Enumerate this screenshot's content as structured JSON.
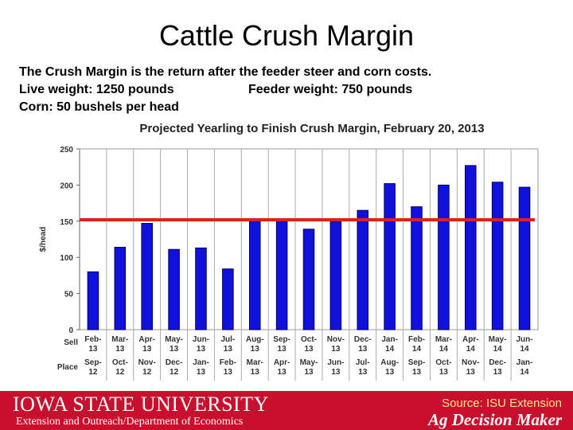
{
  "slide": {
    "title": "Cattle Crush Margin",
    "line1": "The Crush Margin is the return after the feeder steer and corn costs.",
    "line2a": "Live weight:  1250 pounds",
    "line2b": "Feeder weight:  750 pounds",
    "line3": "Corn:  50 bushels per head"
  },
  "footer": {
    "university": "IOWA STATE UNIVERSITY",
    "department": "Extension and Outreach/Department of Economics",
    "source": "Source: ISU Extension",
    "brand": "Ag Decision Maker"
  },
  "colors": {
    "bar": "#1111dd",
    "reference_line": "#e02020",
    "footer": "#c8102e"
  },
  "chart_data": {
    "type": "bar",
    "title": "Projected Yearling to Finish Crush Margin, February 20, 2013",
    "ylabel": "$/head",
    "ylim": [
      0,
      250
    ],
    "yticks": [
      0,
      50,
      100,
      150,
      200,
      250
    ],
    "grid": "vertical",
    "row_labels": [
      "Sell",
      "Place"
    ],
    "sell": [
      "Feb-13",
      "Mar-13",
      "Apr-13",
      "May-13",
      "Jun-13",
      "Jul-13",
      "Aug-13",
      "Sep-13",
      "Oct-13",
      "Nov-13",
      "Dec-13",
      "Jan-14",
      "Feb-14",
      "Mar-14",
      "Apr-14",
      "May-14",
      "Jun-14"
    ],
    "place": [
      "Sep-12",
      "Oct-12",
      "Nov-12",
      "Dec-12",
      "Jan-13",
      "Feb-13",
      "Mar-13",
      "Apr-13",
      "May-13",
      "Jun-13",
      "Jul-13",
      "Aug-13",
      "Sep-13",
      "Oct-13",
      "Nov-13",
      "Dec-13",
      "Jan-14"
    ],
    "values": [
      80,
      114,
      147,
      111,
      113,
      84,
      152,
      153,
      139,
      150,
      165,
      202,
      170,
      200,
      227,
      204,
      197
    ],
    "reference_line": 152
  }
}
